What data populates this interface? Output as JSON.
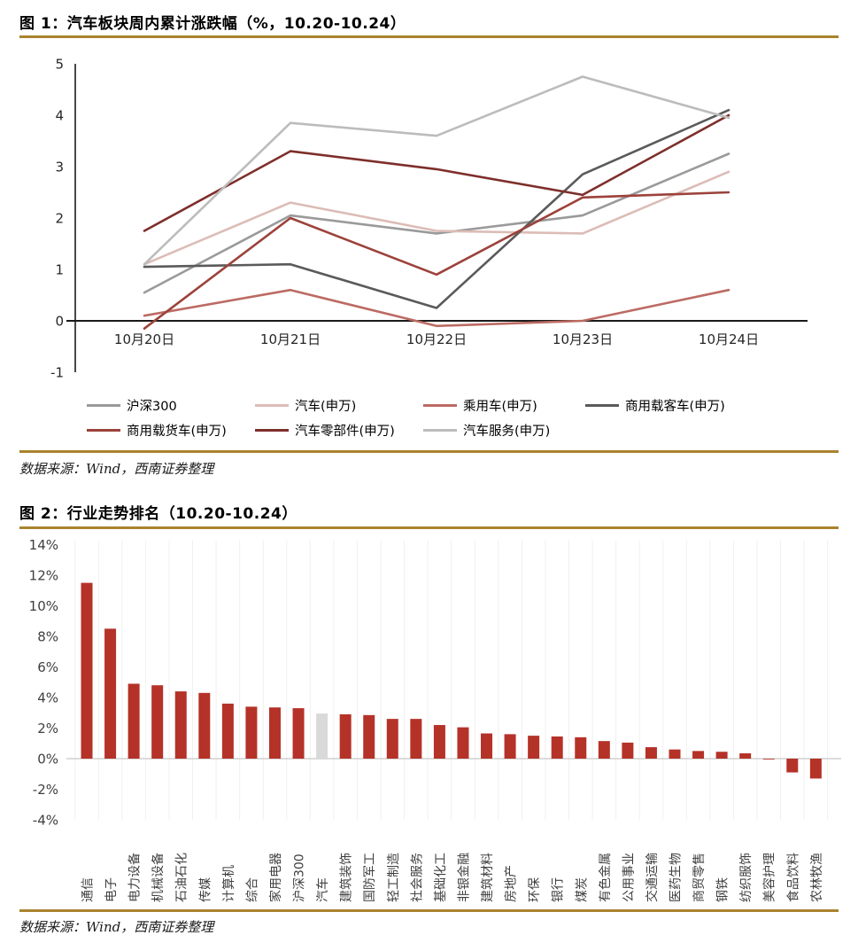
{
  "fig1": {
    "title": "图 1：汽车板块周内累计涨跌幅（%，10.20-10.24）",
    "source": "数据来源：Wind，西南证券整理"
  },
  "fig2": {
    "title": "图 2：行业走势排名（10.20-10.24）",
    "source": "数据来源：Wind，西南证券整理"
  },
  "colors": {
    "rule_gold": "#a9832e",
    "bar_red": "#b53228",
    "bar_highlight_gray": "#d9d9d9",
    "axis_black": "#1a1a1a",
    "zero_line_gray": "#c8c8c8",
    "gridline_faint": "#f0f0f0"
  },
  "chart_data": [
    {
      "type": "line",
      "title": "汽车板块周内累计涨跌幅（%，10.20-10.24）",
      "x": [
        "10月20日",
        "10月21日",
        "10月22日",
        "10月23日",
        "10月24日"
      ],
      "ylim": [
        -1,
        5
      ],
      "yticks": [
        5,
        4,
        3,
        2,
        1,
        0,
        -1
      ],
      "grid": false,
      "legend_position": "bottom",
      "series": [
        {
          "name": "沪深300",
          "color": "#9a9a9a",
          "values": [
            0.55,
            2.05,
            1.7,
            2.05,
            3.25
          ]
        },
        {
          "name": "汽车(申万)",
          "color": "#dcbcb6",
          "values": [
            1.1,
            2.3,
            1.75,
            1.7,
            2.9
          ]
        },
        {
          "name": "乘用车(申万)",
          "color": "#bc6b64",
          "values": [
            0.1,
            0.6,
            -0.1,
            0.0,
            0.6
          ]
        },
        {
          "name": "商用载客车(申万)",
          "color": "#5a5a5a",
          "values": [
            1.05,
            1.1,
            0.25,
            2.85,
            4.1
          ]
        },
        {
          "name": "商用载货车(申万)",
          "color": "#9c423b",
          "values": [
            -0.15,
            2.0,
            0.9,
            2.4,
            2.5
          ]
        },
        {
          "name": "汽车零部件(申万)",
          "color": "#7e2f2b",
          "values": [
            1.75,
            3.3,
            2.95,
            2.45,
            4.0
          ]
        },
        {
          "name": "汽车服务(申万)",
          "color": "#bcbcbc",
          "values": [
            1.1,
            3.85,
            3.6,
            4.75,
            3.95
          ]
        }
      ]
    },
    {
      "type": "bar",
      "title": "行业走势排名（10.20-10.24）",
      "ylim": [
        -4,
        14
      ],
      "ytick_values": [
        14,
        12,
        10,
        8,
        6,
        4,
        2,
        0,
        -2,
        -4
      ],
      "yticks": [
        "14%",
        "12%",
        "10%",
        "8%",
        "6%",
        "4%",
        "2%",
        "0%",
        "-2%",
        "-4%"
      ],
      "grid": true,
      "highlight_category": "汽车",
      "categories": [
        "通信",
        "电子",
        "电力设备",
        "机械设备",
        "石油石化",
        "传媒",
        "计算机",
        "综合",
        "家用电器",
        "沪深300",
        "汽车",
        "建筑装饰",
        "国防军工",
        "轻工制造",
        "社会服务",
        "基础化工",
        "非银金融",
        "建筑材料",
        "房地产",
        "环保",
        "银行",
        "煤炭",
        "有色金属",
        "公用事业",
        "交通运输",
        "医药生物",
        "商贸零售",
        "钢铁",
        "纺织服饰",
        "美容护理",
        "食品饮料",
        "农林牧渔"
      ],
      "values": [
        11.5,
        8.5,
        4.9,
        4.8,
        4.4,
        4.3,
        3.6,
        3.4,
        3.35,
        3.3,
        2.95,
        2.9,
        2.85,
        2.6,
        2.6,
        2.2,
        2.05,
        1.65,
        1.6,
        1.5,
        1.45,
        1.4,
        1.15,
        1.05,
        0.75,
        0.6,
        0.5,
        0.45,
        0.35,
        -0.05,
        -0.9,
        -1.3
      ]
    }
  ]
}
